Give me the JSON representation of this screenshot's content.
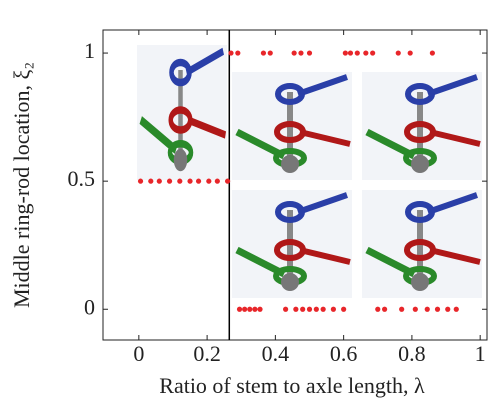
{
  "chart_data": {
    "type": "scatter",
    "xlabel": "Ratio of stem to axle length, λ",
    "ylabel": "Middle ring-rod location, ξ₂",
    "xlim": [
      -0.105,
      1.02
    ],
    "ylim": [
      -0.12,
      1.09
    ],
    "xticks": [
      0,
      0.2,
      0.4,
      0.6,
      0.8,
      1
    ],
    "yticks": [
      0,
      0.5,
      1
    ],
    "vline": 0.265,
    "series": [
      {
        "color": "#e8262a",
        "x": [
          0.005,
          0.035,
          0.06,
          0.09,
          0.12,
          0.15,
          0.175,
          0.205,
          0.23,
          0.26,
          0.27,
          0.29,
          0.365,
          0.385,
          0.455,
          0.475,
          0.5,
          0.605,
          0.62,
          0.64,
          0.665,
          0.685,
          0.76,
          0.795,
          0.86,
          0.295,
          0.31,
          0.325,
          0.34,
          0.355,
          0.43,
          0.46,
          0.48,
          0.5,
          0.52,
          0.54,
          0.57,
          0.6,
          0.7,
          0.72,
          0.77,
          0.81,
          0.845,
          0.875,
          0.905,
          0.93
        ],
        "values": [
          0.5,
          0.5,
          0.5,
          0.5,
          0.5,
          0.5,
          0.5,
          0.5,
          0.5,
          0.5,
          1,
          1,
          1,
          1,
          1,
          1,
          1,
          1,
          1,
          1,
          1,
          1,
          1,
          1,
          1,
          0,
          0,
          0,
          0,
          0,
          0,
          0,
          0,
          0,
          0,
          0,
          0,
          0,
          0,
          0,
          0,
          0,
          0,
          0,
          0,
          0
        ]
      }
    ]
  }
}
